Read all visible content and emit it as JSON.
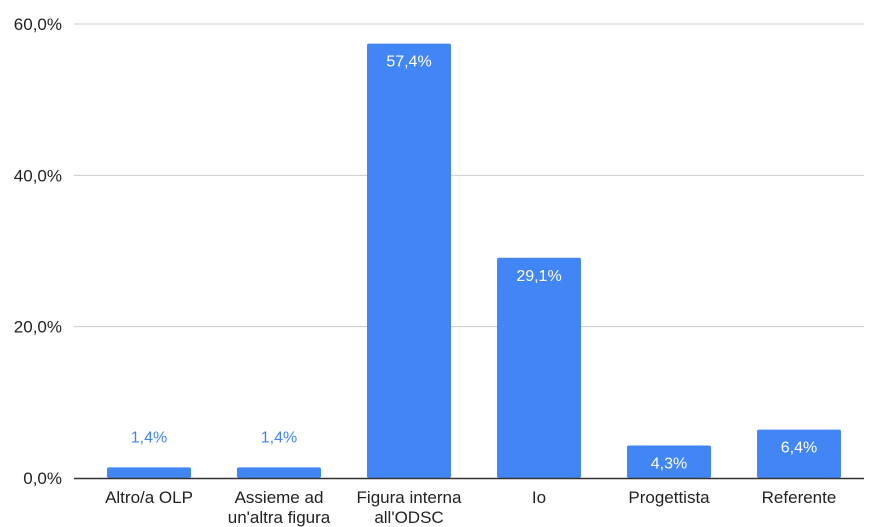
{
  "colors": {
    "bar": "#4285f4",
    "gridline": "#cccccc",
    "baseline": "#333333",
    "label_inside": "#ffffff",
    "label_outside": "#4285f4"
  },
  "chart_data": {
    "type": "bar",
    "categories": [
      [
        "Altro/a OLP"
      ],
      [
        "Assieme ad",
        "un'altra figura"
      ],
      [
        "Figura interna",
        "all'ODSC"
      ],
      [
        "Io"
      ],
      [
        "Progettista"
      ],
      [
        "Referente"
      ]
    ],
    "values": [
      1.4,
      1.4,
      57.4,
      29.1,
      4.3,
      6.4
    ],
    "value_labels": [
      "1,4%",
      "1,4%",
      "57,4%",
      "29,1%",
      "4,3%",
      "6,4%"
    ],
    "ylim": [
      0,
      60
    ],
    "yticks": [
      0,
      20,
      40,
      60
    ],
    "ytick_labels": [
      "0,0%",
      "20,0%",
      "40,0%",
      "60,0%"
    ],
    "grid": true,
    "title": "",
    "xlabel": "",
    "ylabel": ""
  }
}
